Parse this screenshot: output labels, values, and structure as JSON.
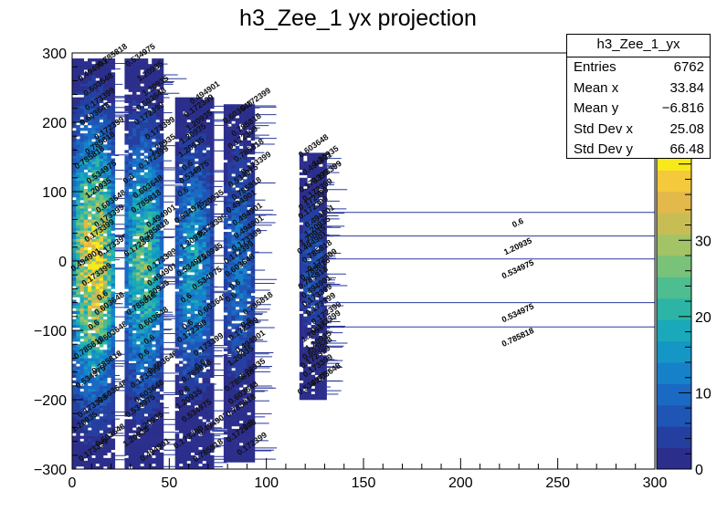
{
  "chart_data": {
    "type": "heatmap",
    "title": "h3_Zee_1 yx projection",
    "xlabel": "",
    "ylabel": "",
    "xlim": [
      0,
      300
    ],
    "ylim": [
      -300,
      300
    ],
    "x_ticks": [
      "0",
      "50",
      "100",
      "150",
      "200",
      "250",
      "300"
    ],
    "y_ticks": [
      "300",
      "200",
      "100",
      "0",
      "−100",
      "−200",
      "−300"
    ],
    "colorbar": {
      "range": [
        0,
        42
      ],
      "ticks": [
        "0",
        "10",
        "20",
        "30"
      ]
    },
    "clusters": [
      {
        "x_range": [
          0,
          22
        ],
        "y_range": [
          -300,
          290
        ],
        "peak": 40
      },
      {
        "x_range": [
          27,
          47
        ],
        "y_range": [
          -300,
          290
        ],
        "peak": 26
      },
      {
        "x_range": [
          53,
          72
        ],
        "y_range": [
          -300,
          235
        ],
        "peak": 18
      },
      {
        "x_range": [
          78,
          94
        ],
        "y_range": [
          -290,
          225
        ],
        "peak": 12
      },
      {
        "x_range": [
          117,
          130
        ],
        "y_range": [
          -200,
          155
        ],
        "peak": 8
      }
    ],
    "horizontal_lines": [
      {
        "y": 70,
        "x_end": 300,
        "label": "0.6"
      },
      {
        "y": 36,
        "x_end": 300,
        "label": "1.20935"
      },
      {
        "y": 3,
        "x_end": 300,
        "label": "0.534975"
      },
      {
        "y": -60,
        "x_end": 300,
        "label": "0.534975"
      },
      {
        "y": -95,
        "x_end": 300,
        "label": "0.785818"
      }
    ],
    "cell_text_samples": [
      "0.173399",
      "0.494901",
      "0.534975",
      "0.603648",
      "0.785818",
      "1.20935",
      "0.6",
      "0.172399"
    ],
    "stats": {
      "title": "h3_Zee_1_yx",
      "rows": [
        {
          "label": "Entries",
          "value": "6762"
        },
        {
          "label": "Mean x",
          "value": "33.84"
        },
        {
          "label": "Mean y",
          "value": "−6.816"
        },
        {
          "label": "Std Dev x",
          "value": "25.08"
        },
        {
          "label": "Std Dev y",
          "value": "66.48"
        }
      ]
    }
  }
}
